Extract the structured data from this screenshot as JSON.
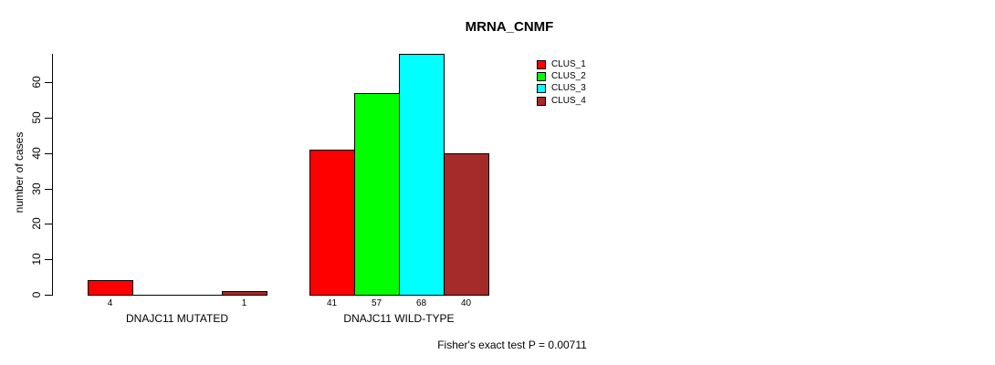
{
  "chart_data": {
    "type": "bar",
    "title": "MRNA_CNMF",
    "ylabel": "number of cases",
    "xlabel": "",
    "ylim": [
      0,
      68
    ],
    "yticks": [
      0,
      10,
      20,
      30,
      40,
      50,
      60
    ],
    "grid": false,
    "legend_position": "top-right-inside",
    "categories": [
      "DNAJC11 MUTATED",
      "DNAJC11 WILD-TYPE"
    ],
    "series": [
      {
        "name": "CLUS_1",
        "color": "#ff0000",
        "values": [
          4,
          41
        ]
      },
      {
        "name": "CLUS_2",
        "color": "#00ff00",
        "values": [
          0,
          57
        ]
      },
      {
        "name": "CLUS_3",
        "color": "#00ffff",
        "values": [
          0,
          68
        ]
      },
      {
        "name": "CLUS_4",
        "color": "#a52a2a",
        "values": [
          1,
          40
        ]
      }
    ],
    "bar_value_labels": {
      "DNAJC11 MUTATED": [
        "4",
        "",
        "",
        "1"
      ],
      "DNAJC11 WILD-TYPE": [
        "41",
        "57",
        "68",
        "40"
      ]
    },
    "annotation": "Fisher's exact test P = 0.00711",
    "axis_color": "#000000",
    "background_color": "#ffffff"
  }
}
